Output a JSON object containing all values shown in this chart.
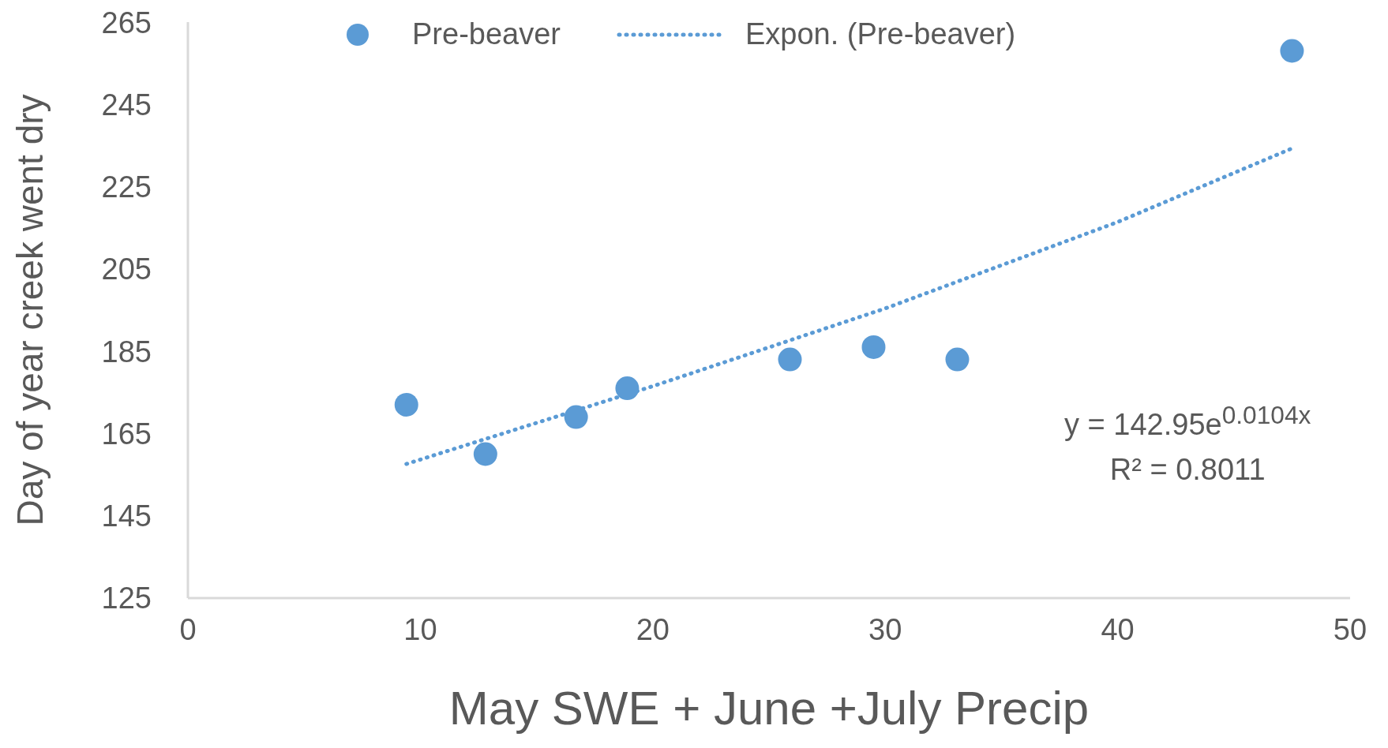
{
  "chart_data": {
    "type": "scatter",
    "xlabel": "May SWE + June +July Precip",
    "ylabel": "Day of year creek went dry",
    "xlim": [
      0,
      50
    ],
    "xticks": [
      0,
      10,
      20,
      30,
      40,
      50
    ],
    "ylim": [
      125,
      265
    ],
    "yticks": [
      125,
      145,
      165,
      185,
      205,
      225,
      245,
      265
    ],
    "grid": false,
    "legend": "top",
    "series": [
      {
        "name": "Pre-beaver",
        "type": "scatter",
        "color": "#5b9bd5",
        "marker": "circle",
        "x": [
          9.4,
          12.8,
          16.7,
          18.9,
          25.9,
          29.5,
          33.1,
          47.5
        ],
        "values": [
          172,
          160,
          169,
          176,
          183,
          186,
          183,
          258
        ]
      },
      {
        "name": "Expon. (Pre-beaver)",
        "type": "line",
        "line_style": "dotted",
        "color": "#5b9bd5",
        "x": [
          9.4,
          20,
          30,
          40,
          47.5
        ],
        "values": [
          157.6,
          176.5,
          195.4,
          216.4,
          234.3
        ]
      }
    ],
    "annotations": [
      "y = 142.95e$^{0.0104x}$",
      "R² = 0.8011"
    ]
  }
}
